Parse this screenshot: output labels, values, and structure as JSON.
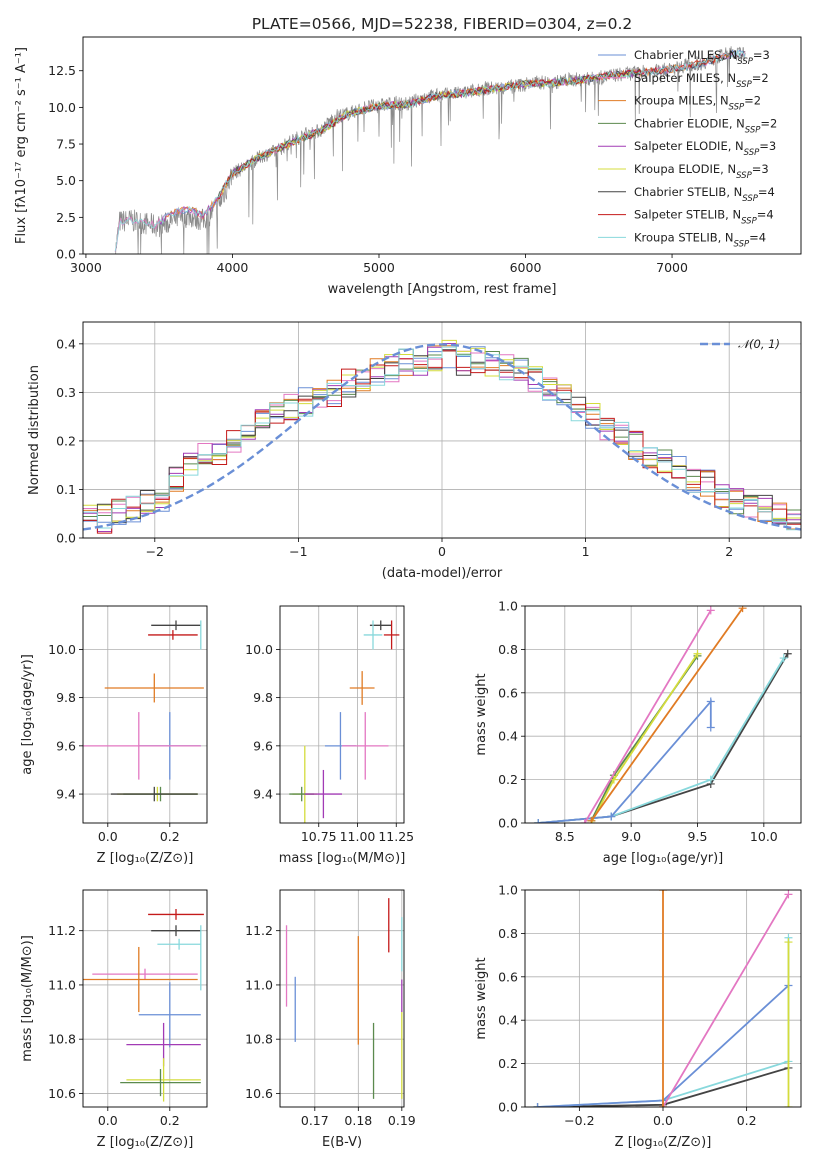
{
  "figure_title": "PLATE=0566, MJD=52238, FIBERID=0304, z=0.2",
  "chart_data": [
    {
      "id": "spectrum",
      "type": "line",
      "title": "PLATE=0566, MJD=52238, FIBERID=0304, z=0.2",
      "xlabel": "wavelength [Angstrom, rest frame]",
      "ylabel": "Flux [fλ10⁻¹⁷ erg cm⁻² s⁻¹ A⁻¹]",
      "xlim": [
        2980,
        7880
      ],
      "ylim": [
        0,
        14.8
      ],
      "xticks": [
        3000,
        4000,
        5000,
        6000,
        7000
      ],
      "yticks": [
        0.0,
        2.5,
        5.0,
        7.5,
        10.0,
        12.5
      ],
      "legend_position": "top-right",
      "legend": [
        {
          "model": "Chabrier MILES",
          "nssp": "3",
          "color": "#6a8fd6"
        },
        {
          "model": "Salpeter MILES",
          "nssp": "2",
          "color": "#e377c2"
        },
        {
          "model": "Kroupa MILES",
          "nssp": "2",
          "color": "#e07b24"
        },
        {
          "model": "Chabrier ELODIE",
          "nssp": "2",
          "color": "#5b8a4e"
        },
        {
          "model": "Salpeter ELODIE",
          "nssp": "3",
          "color": "#a23bb5"
        },
        {
          "model": "Kroupa ELODIE",
          "nssp": "3",
          "color": "#d4dc3c"
        },
        {
          "model": "Chabrier STELIB",
          "nssp": "4",
          "color": "#444444"
        },
        {
          "model": "Salpeter STELIB",
          "nssp": "4",
          "color": "#c41a1a"
        },
        {
          "model": "Kroupa STELIB",
          "nssp": "4",
          "color": "#88d8dc"
        }
      ],
      "series": [
        {
          "name": "data",
          "color": "#8a8a8a",
          "x": [
            3200,
            3230,
            3300,
            3400,
            3500,
            3600,
            3700,
            3800,
            3900,
            3960,
            4000,
            4100,
            4200,
            4300,
            4400,
            4500,
            4600,
            4700,
            4800,
            4900,
            5000,
            5100,
            5200,
            5300,
            5400,
            5500,
            5600,
            5700,
            5800,
            5900,
            6000,
            6100,
            6200,
            6300,
            6400,
            6500,
            6600,
            6700,
            6800,
            6900,
            7000,
            7100,
            7200,
            7300,
            7400,
            7500
          ],
          "y": [
            0,
            2.2,
            2.3,
            2.1,
            1.9,
            2.3,
            2.6,
            2.3,
            3.2,
            4.5,
            5.5,
            6.0,
            6.7,
            7.0,
            7.7,
            8.2,
            8.4,
            9.4,
            9.6,
            10.0,
            10.1,
            10.3,
            10.2,
            10.7,
            10.8,
            10.9,
            11.0,
            11.3,
            11.3,
            11.4,
            11.6,
            11.7,
            11.7,
            11.9,
            11.9,
            12.0,
            12.2,
            12.3,
            12.4,
            12.5,
            12.6,
            12.9,
            13.0,
            13.4,
            13.7,
            13.6
          ]
        },
        {
          "name": "model",
          "color": "#e07b24",
          "x": [
            3500,
            3600,
            3700,
            3800,
            3900,
            4000,
            4200,
            4400,
            4600,
            4800,
            5000,
            5200,
            5400,
            5600,
            5800,
            6000,
            6200,
            6400,
            6600,
            6800,
            7000,
            7200,
            7400
          ],
          "y": [
            2.2,
            2.8,
            3.1,
            2.6,
            3.8,
            5.5,
            6.7,
            7.6,
            8.4,
            9.6,
            10.1,
            10.2,
            10.8,
            11.0,
            11.3,
            11.6,
            11.7,
            11.9,
            12.2,
            12.4,
            12.6,
            13.0,
            13.6
          ]
        }
      ]
    },
    {
      "id": "residuals",
      "type": "line",
      "xlabel": "(data-model)/error",
      "ylabel": "Normed distribution",
      "xlim": [
        -2.5,
        2.5
      ],
      "ylim": [
        0,
        0.445
      ],
      "xticks": [
        -2,
        -1,
        0,
        1,
        2
      ],
      "yticks": [
        0.0,
        0.1,
        0.2,
        0.3,
        0.4
      ],
      "legend_position": "top-right",
      "gaussian_label": "𝒩(0, 1)",
      "gaussian_color": "#6a8fd6",
      "hist_bin_width": 0.1,
      "hist_x0": -2.5,
      "hist_values": [
        0.04,
        0.04,
        0.05,
        0.06,
        0.08,
        0.08,
        0.12,
        0.15,
        0.17,
        0.18,
        0.2,
        0.22,
        0.24,
        0.26,
        0.27,
        0.28,
        0.29,
        0.3,
        0.32,
        0.33,
        0.34,
        0.35,
        0.36,
        0.36,
        0.37,
        0.38,
        0.36,
        0.37,
        0.36,
        0.35,
        0.34,
        0.33,
        0.31,
        0.29,
        0.27,
        0.25,
        0.23,
        0.21,
        0.19,
        0.17,
        0.16,
        0.14,
        0.12,
        0.11,
        0.09,
        0.08,
        0.07,
        0.06,
        0.05,
        0.04
      ]
    },
    {
      "id": "age_vs_Z",
      "type": "scatter",
      "xlabel": "Z [log₁₀(Z/Z⊙)]",
      "ylabel": "age  [log₁₀(age/yr)]",
      "xlim": [
        -0.08,
        0.32
      ],
      "ylim": [
        9.28,
        10.18
      ],
      "xticks": [
        0.0,
        0.2
      ],
      "yticks": [
        9.4,
        9.6,
        9.8,
        10.0
      ],
      "points": [
        {
          "x": 0.22,
          "y": 10.1,
          "xerr": 0.08,
          "yerr": 0.02,
          "color": "#444444"
        },
        {
          "x": 0.21,
          "y": 10.06,
          "xerr": 0.08,
          "yerr": 0.02,
          "color": "#c41a1a"
        },
        {
          "x": 0.3,
          "y": 10.06,
          "xerr": 0.0,
          "yerr": 0.06,
          "color": "#88d8dc"
        },
        {
          "x": 0.15,
          "y": 9.84,
          "xerr": 0.16,
          "yerr": 0.06,
          "color": "#e07b24"
        },
        {
          "x": 0.2,
          "y": 9.6,
          "xerr": 0.1,
          "yerr": 0.14,
          "color": "#6a8fd6"
        },
        {
          "x": 0.1,
          "y": 9.6,
          "xerr": 0.2,
          "yerr": 0.14,
          "color": "#e377c2"
        },
        {
          "x": 0.16,
          "y": 9.4,
          "xerr": 0.13,
          "yerr": 0.03,
          "color": "#d4dc3c"
        },
        {
          "x": 0.17,
          "y": 9.4,
          "xerr": 0.12,
          "yerr": 0.03,
          "color": "#5b8a4e"
        },
        {
          "x": 0.15,
          "y": 9.4,
          "xerr": 0.14,
          "yerr": 0.03,
          "color": "#444444"
        }
      ]
    },
    {
      "id": "age_vs_mass",
      "type": "scatter",
      "xlabel": "mass [log₁₀(M/M⊙)]",
      "ylabel": "",
      "xlim": [
        10.5,
        11.3
      ],
      "ylim": [
        9.28,
        10.18
      ],
      "xticks": [
        10.75,
        11.0,
        11.25
      ],
      "xtick_labels": [
        "10.75",
        "11.00",
        "11.25"
      ],
      "yticks": [
        9.4,
        9.6,
        9.8,
        10.0
      ],
      "points": [
        {
          "x": 11.15,
          "y": 10.1,
          "xerr": 0.07,
          "yerr": 0.02,
          "color": "#444444"
        },
        {
          "x": 11.22,
          "y": 10.06,
          "xerr": 0.05,
          "yerr": 0.06,
          "color": "#c41a1a"
        },
        {
          "x": 11.1,
          "y": 10.06,
          "xerr": 0.06,
          "yerr": 0.06,
          "color": "#88d8dc"
        },
        {
          "x": 11.03,
          "y": 9.84,
          "xerr": 0.08,
          "yerr": 0.07,
          "color": "#e07b24"
        },
        {
          "x": 10.89,
          "y": 9.6,
          "xerr": 0.1,
          "yerr": 0.14,
          "color": "#6a8fd6"
        },
        {
          "x": 11.05,
          "y": 9.6,
          "xerr": 0.15,
          "yerr": 0.14,
          "color": "#e377c2"
        },
        {
          "x": 10.66,
          "y": 9.4,
          "xerr": 0.08,
          "yerr": 0.2,
          "color": "#d4dc3c"
        },
        {
          "x": 10.64,
          "y": 9.4,
          "xerr": 0.08,
          "yerr": 0.03,
          "color": "#5b8a4e"
        },
        {
          "x": 10.78,
          "y": 9.4,
          "xerr": 0.12,
          "yerr": 0.1,
          "color": "#a23bb5"
        }
      ]
    },
    {
      "id": "weight_vs_age",
      "type": "line",
      "xlabel": "age  [log₁₀(age/yr)]",
      "ylabel": "mass weight",
      "xlim": [
        8.2,
        10.28
      ],
      "ylim": [
        0,
        1
      ],
      "xticks": [
        8.5,
        9.0,
        9.5,
        10.0
      ],
      "yticks": [
        0.0,
        0.2,
        0.4,
        0.6,
        0.8,
        1.0
      ],
      "series": [
        {
          "color": "#444444",
          "x": [
            8.3,
            8.85,
            9.6,
            10.18
          ],
          "y": [
            0.0,
            0.03,
            0.18,
            0.78
          ]
        },
        {
          "color": "#88d8dc",
          "x": [
            8.3,
            8.85,
            9.6,
            10.15
          ],
          "y": [
            0.0,
            0.03,
            0.2,
            0.76
          ]
        },
        {
          "color": "#5b8a4e",
          "x": [
            8.7,
            8.87,
            9.5
          ],
          "y": [
            0.01,
            0.22,
            0.77
          ]
        },
        {
          "color": "#d4dc3c",
          "x": [
            8.7,
            8.87,
            9.5
          ],
          "y": [
            0.0,
            0.2,
            0.78
          ]
        },
        {
          "color": "#6a8fd6",
          "x": [
            8.3,
            8.85,
            9.6,
            9.6
          ],
          "y": [
            0.0,
            0.03,
            0.56,
            0.44
          ]
        },
        {
          "color": "#e07b24",
          "x": [
            8.7,
            9.84
          ],
          "y": [
            0.01,
            0.99
          ]
        },
        {
          "color": "#e377c2",
          "x": [
            8.65,
            9.6
          ],
          "y": [
            0.0,
            0.98
          ]
        }
      ]
    },
    {
      "id": "mass_vs_Z",
      "type": "scatter",
      "xlabel": "Z [log₁₀(Z/Z⊙)]",
      "ylabel": "mass [log₁₀(M/M⊙)]",
      "xlim": [
        -0.08,
        0.32
      ],
      "ylim": [
        10.55,
        11.35
      ],
      "xticks": [
        0.0,
        0.2
      ],
      "yticks": [
        10.6,
        10.8,
        11.0,
        11.2
      ],
      "points": [
        {
          "x": 0.22,
          "y": 11.26,
          "xerr": 0.09,
          "yerr": 0.02,
          "color": "#c41a1a"
        },
        {
          "x": 0.22,
          "y": 11.2,
          "xerr": 0.08,
          "yerr": 0.02,
          "color": "#444444"
        },
        {
          "x": 0.23,
          "y": 11.15,
          "xerr": 0.07,
          "yerr": 0.02,
          "color": "#88d8dc"
        },
        {
          "x": 0.3,
          "y": 11.1,
          "xerr": 0.0,
          "yerr": 0.12,
          "color": "#88d8dc"
        },
        {
          "x": 0.12,
          "y": 11.04,
          "xerr": 0.17,
          "yerr": 0.02,
          "color": "#e377c2"
        },
        {
          "x": 0.1,
          "y": 11.02,
          "xerr": 0.19,
          "yerr": 0.12,
          "color": "#e07b24"
        },
        {
          "x": 0.2,
          "y": 10.89,
          "xerr": 0.1,
          "yerr": 0.12,
          "color": "#6a8fd6"
        },
        {
          "x": 0.18,
          "y": 10.78,
          "xerr": 0.12,
          "yerr": 0.08,
          "color": "#a23bb5"
        },
        {
          "x": 0.18,
          "y": 10.65,
          "xerr": 0.12,
          "yerr": 0.08,
          "color": "#d4dc3c"
        },
        {
          "x": 0.17,
          "y": 10.64,
          "xerr": 0.13,
          "yerr": 0.05,
          "color": "#5b8a4e"
        }
      ]
    },
    {
      "id": "mass_vs_ebv",
      "type": "scatter",
      "xlabel": "E(B-V)",
      "ylabel": "",
      "xlim": [
        0.162,
        0.1905
      ],
      "ylim": [
        10.55,
        11.35
      ],
      "xticks": [
        0.17,
        0.18,
        0.19
      ],
      "yticks": [
        10.6,
        10.8,
        11.0,
        11.2
      ],
      "points": [
        {
          "x": 0.1635,
          "y": 11.07,
          "yerr": 0.15,
          "color": "#e377c2"
        },
        {
          "x": 0.1655,
          "y": 10.91,
          "yerr": 0.12,
          "color": "#6a8fd6"
        },
        {
          "x": 0.18,
          "y": 10.98,
          "yerr": 0.2,
          "color": "#e07b24"
        },
        {
          "x": 0.1835,
          "y": 10.72,
          "yerr": 0.14,
          "color": "#5b8a4e"
        },
        {
          "x": 0.187,
          "y": 11.22,
          "yerr": 0.1,
          "color": "#c41a1a"
        },
        {
          "x": 0.19,
          "y": 11.15,
          "yerr": 0.1,
          "color": "#88d8dc"
        },
        {
          "x": 0.19,
          "y": 10.96,
          "yerr": 0.06,
          "color": "#a23bb5"
        },
        {
          "x": 0.19,
          "y": 10.74,
          "yerr": 0.16,
          "color": "#d4dc3c"
        }
      ]
    },
    {
      "id": "weight_vs_Z",
      "type": "line",
      "xlabel": "Z [log₁₀(Z/Z⊙)]",
      "ylabel": "mass weight",
      "xlim": [
        -0.33,
        0.33
      ],
      "ylim": [
        0,
        1
      ],
      "xticks": [
        -0.2,
        0.0,
        0.2
      ],
      "yticks": [
        0.0,
        0.2,
        0.4,
        0.6,
        0.8,
        1.0
      ],
      "series": [
        {
          "color": "#444444",
          "x": [
            -0.3,
            0.0,
            0.3
          ],
          "y": [
            0.0,
            0.01,
            0.18
          ]
        },
        {
          "color": "#88d8dc",
          "x": [
            -0.3,
            0.0,
            0.3,
            0.3
          ],
          "y": [
            0.0,
            0.03,
            0.21,
            0.78
          ]
        },
        {
          "color": "#6a8fd6",
          "x": [
            -0.3,
            0.0,
            0.3
          ],
          "y": [
            0.0,
            0.03,
            0.56
          ]
        },
        {
          "color": "#e377c2",
          "x": [
            0.0,
            0.3
          ],
          "y": [
            0.0,
            0.98
          ]
        },
        {
          "color": "#e07b24",
          "x": [
            0.0,
            0.0
          ],
          "y": [
            0.0,
            1.0
          ]
        },
        {
          "color": "#d4dc3c",
          "x": [
            0.3,
            0.3
          ],
          "y": [
            0.0,
            0.76
          ]
        }
      ]
    }
  ]
}
